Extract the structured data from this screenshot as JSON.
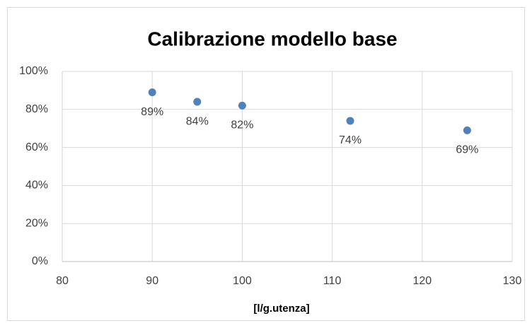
{
  "chart_data": {
    "type": "scatter",
    "title": "Calibrazione modello base",
    "x_label": "[l/g.utenza]",
    "series": [
      {
        "color": "#4f81bd",
        "x": [
          90,
          95,
          100,
          112,
          125
        ],
        "values": [
          89,
          84,
          82,
          74,
          69
        ],
        "value_labels": [
          "89%",
          "84%",
          "82%",
          "74%",
          "69%"
        ]
      }
    ],
    "xlim": [
      80,
      130
    ],
    "xticks": [
      80,
      90,
      100,
      110,
      120,
      130
    ],
    "ylim": [
      0,
      100
    ],
    "yticks": [
      {
        "value": 0,
        "label": "0%"
      },
      {
        "value": 20,
        "label": "20%"
      },
      {
        "value": 40,
        "label": "40%"
      },
      {
        "value": 60,
        "label": "60%"
      },
      {
        "value": 80,
        "label": "80%"
      },
      {
        "value": 100,
        "label": "100%"
      }
    ],
    "grid": true
  }
}
